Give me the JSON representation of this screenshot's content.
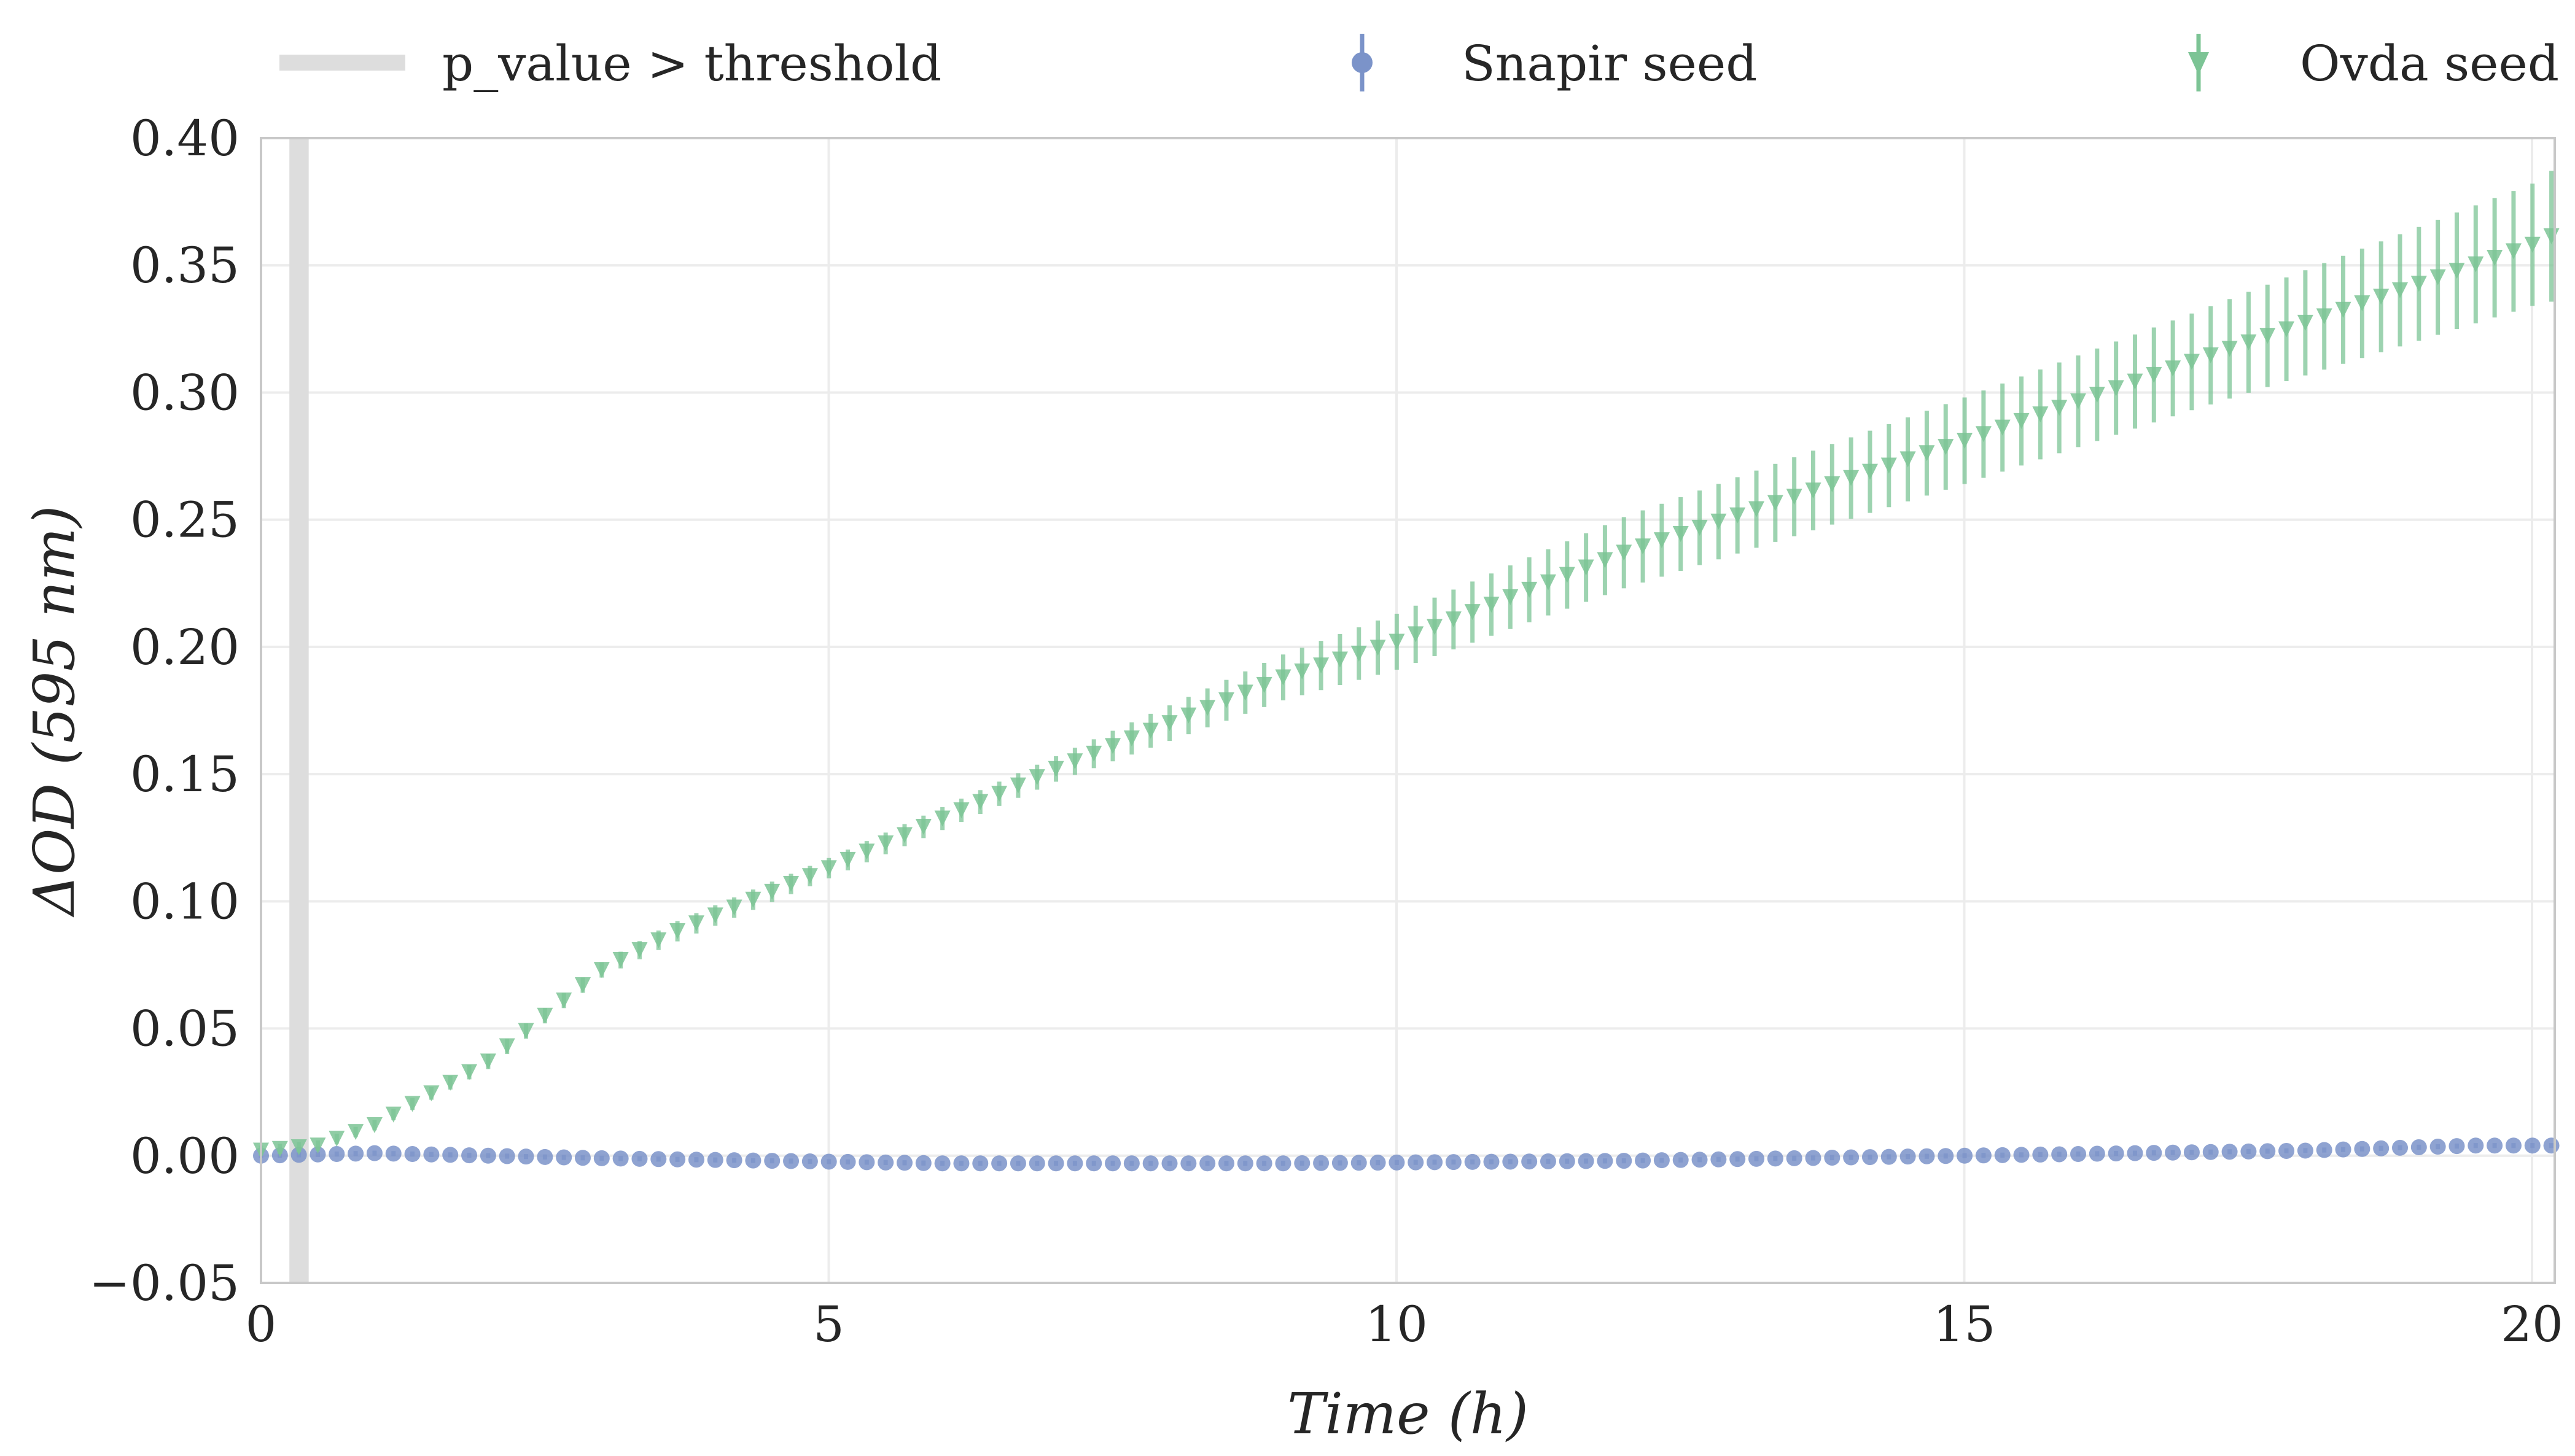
{
  "chart_data": {
    "type": "scatter",
    "xlabel": "Time (h)",
    "ylabel": "ΔOD (595 nm)",
    "xlim": [
      0,
      20.2
    ],
    "ylim": [
      -0.05,
      0.4
    ],
    "x_ticks": [
      "0",
      "5",
      "10",
      "15",
      "20"
    ],
    "y_ticks": [
      "−0.05",
      "0.00",
      "0.05",
      "0.10",
      "0.15",
      "0.20",
      "0.25",
      "0.30",
      "0.35",
      "0.40"
    ],
    "grid": true,
    "legend_placement": "top",
    "threshold_band": {
      "label": "p_value > threshold",
      "x_range": [
        0.25,
        0.42
      ],
      "color": "#dddddd"
    },
    "sampling_interval_h": 0.1667,
    "series": [
      {
        "name": "Snapir seed",
        "marker": "circle",
        "color": "#7b93c9",
        "anchors_x": [
          0,
          1,
          3,
          6,
          9,
          12,
          15,
          18,
          19.5,
          20.2
        ],
        "anchors_y": [
          0.0,
          0.001,
          -0.001,
          -0.003,
          -0.003,
          -0.002,
          0.0,
          0.002,
          0.004,
          0.004
        ],
        "error_anchors": [
          0.001,
          0.001,
          0.001,
          0.001,
          0.001,
          0.001,
          0.001,
          0.001,
          0.001,
          0.001
        ]
      },
      {
        "name": "Ovda seed",
        "marker": "triangle-down",
        "color": "#7cc495",
        "anchors_x": [
          0,
          0.5,
          1,
          2,
          3,
          3.6,
          5,
          7,
          9,
          10,
          12,
          15,
          17,
          20,
          20.2
        ],
        "anchors_y": [
          0.002,
          0.004,
          0.012,
          0.037,
          0.073,
          0.087,
          0.113,
          0.152,
          0.188,
          0.202,
          0.237,
          0.281,
          0.312,
          0.358,
          0.362
        ],
        "error_anchors": [
          0.002,
          0.002,
          0.002,
          0.003,
          0.003,
          0.004,
          0.004,
          0.005,
          0.009,
          0.011,
          0.014,
          0.017,
          0.019,
          0.024,
          0.026
        ]
      }
    ]
  }
}
